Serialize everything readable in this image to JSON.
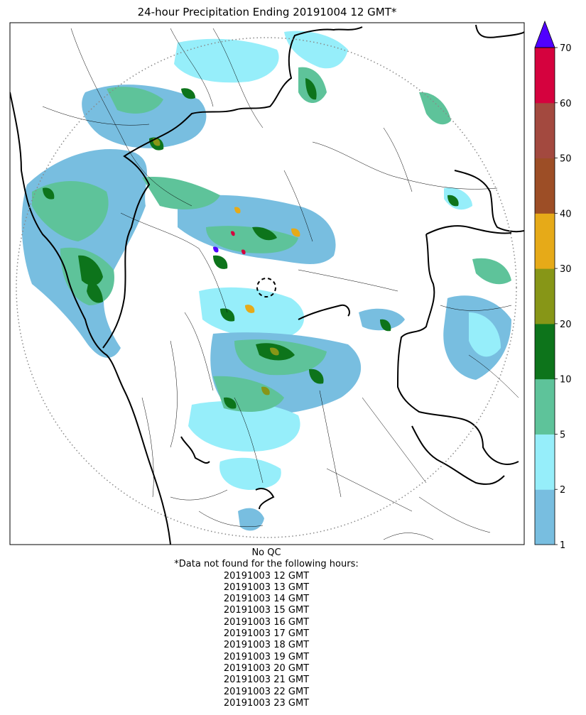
{
  "title": "24-hour Precipitation Ending 20191004 12 GMT*",
  "colorbar": {
    "ticks": [
      "1",
      "2",
      "5",
      "10",
      "20",
      "30",
      "40",
      "50",
      "60",
      "70"
    ],
    "colors": [
      "#78bee0",
      "#96eefa",
      "#5ec39a",
      "#0d741b",
      "#879617",
      "#e6aa18",
      "#9d4e26",
      "#a3493f",
      "#d5023e"
    ],
    "extend_color": "#5000ff"
  },
  "footer": {
    "qc_label": "No QC",
    "missing_note": "*Data not found for the following hours:",
    "missing_hours": [
      "20191003 12 GMT",
      "20191003 13 GMT",
      "20191003 14 GMT",
      "20191003 15 GMT",
      "20191003 16 GMT",
      "20191003 17 GMT",
      "20191003 18 GMT",
      "20191003 19 GMT",
      "20191003 20 GMT",
      "20191003 21 GMT",
      "20191003 22 GMT",
      "20191003 23 GMT"
    ]
  },
  "colors": {
    "range_ring": "#888888",
    "boundary": "#000000"
  }
}
